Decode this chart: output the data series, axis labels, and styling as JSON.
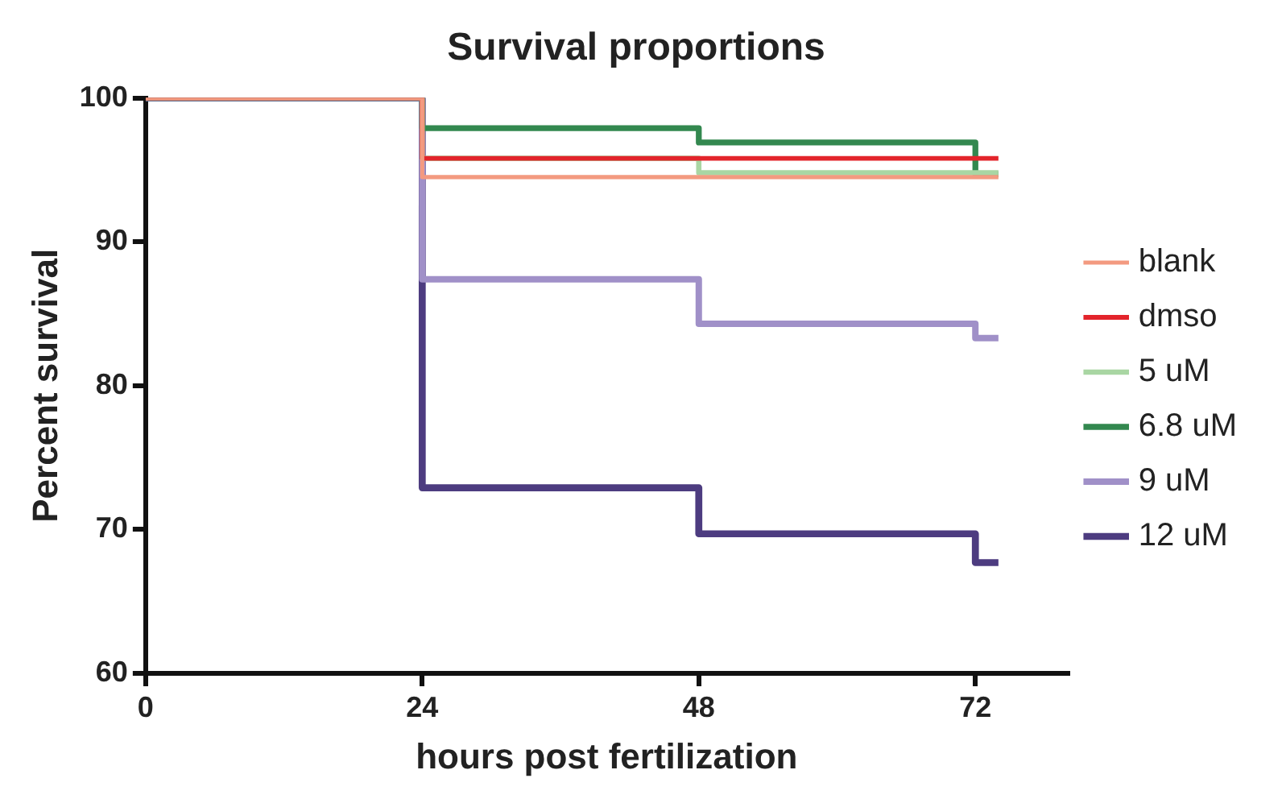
{
  "chart_data": {
    "type": "step",
    "title": "Survival proportions",
    "xlabel": "hours post fertilization",
    "ylabel": "Percent survival",
    "xlim": [
      0,
      80
    ],
    "xticks": [
      0,
      24,
      48,
      72
    ],
    "ylim": [
      60,
      100
    ],
    "yticks": [
      60,
      70,
      80,
      90,
      100
    ],
    "grid": false,
    "legend": "right",
    "series": [
      {
        "name": "blank",
        "color": "#f39a80",
        "x": [
          0,
          24,
          74
        ],
        "values": [
          100,
          94.5,
          94.5
        ]
      },
      {
        "name": "dmso",
        "color": "#e3242b",
        "x": [
          0,
          24,
          74
        ],
        "values": [
          100,
          95.8,
          95.8
        ]
      },
      {
        "name": "5 uM",
        "color": "#a9d6a3",
        "x": [
          0,
          24,
          48,
          74
        ],
        "values": [
          100,
          95.8,
          94.8,
          94.8
        ]
      },
      {
        "name": "6.8 uM",
        "color": "#33884f",
        "x": [
          0,
          24,
          48,
          72,
          74
        ],
        "values": [
          100,
          97.9,
          96.9,
          94.7,
          94.7
        ]
      },
      {
        "name": "9 uM",
        "color": "#a090c8",
        "x": [
          0,
          24,
          48,
          72,
          74
        ],
        "values": [
          100,
          87.4,
          84.3,
          83.3,
          83.3
        ]
      },
      {
        "name": "12 uM",
        "color": "#4d3c80",
        "x": [
          0,
          24,
          48,
          72,
          74
        ],
        "values": [
          100,
          72.9,
          69.7,
          67.7,
          67.7
        ]
      }
    ]
  }
}
